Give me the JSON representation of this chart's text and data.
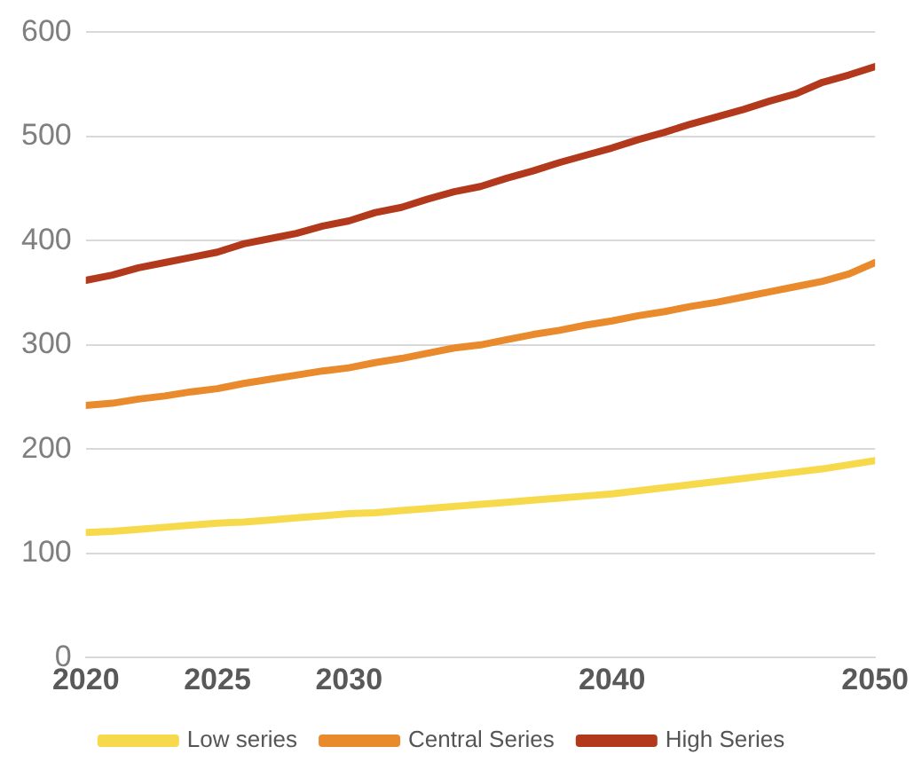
{
  "chart_data": {
    "type": "line",
    "x": [
      2020,
      2021,
      2022,
      2023,
      2024,
      2025,
      2026,
      2027,
      2028,
      2029,
      2030,
      2031,
      2032,
      2033,
      2034,
      2035,
      2036,
      2037,
      2038,
      2039,
      2040,
      2041,
      2042,
      2043,
      2044,
      2045,
      2046,
      2047,
      2048,
      2049,
      2050
    ],
    "series": [
      {
        "name": "Low series",
        "color": "#f7d94c",
        "values": [
          120,
          121,
          123,
          125,
          127,
          129,
          130,
          132,
          134,
          136,
          138,
          139,
          141,
          143,
          145,
          147,
          149,
          151,
          153,
          155,
          157,
          160,
          163,
          166,
          169,
          172,
          175,
          178,
          181,
          185,
          189
        ]
      },
      {
        "name": "Central Series",
        "color": "#e98a2c",
        "values": [
          242,
          244,
          248,
          251,
          255,
          258,
          263,
          267,
          271,
          275,
          278,
          283,
          287,
          292,
          297,
          300,
          305,
          310,
          314,
          319,
          323,
          328,
          332,
          337,
          341,
          346,
          351,
          356,
          361,
          368,
          379
        ]
      },
      {
        "name": "High Series",
        "color": "#b3391c",
        "values": [
          362,
          367,
          374,
          379,
          384,
          389,
          397,
          402,
          407,
          414,
          419,
          427,
          432,
          440,
          447,
          452,
          460,
          467,
          475,
          482,
          489,
          497,
          504,
          512,
          519,
          526,
          534,
          541,
          552,
          559,
          567
        ]
      }
    ],
    "xlim": [
      2020,
      2050
    ],
    "xticks": [
      2020,
      2025,
      2030,
      2040,
      2050
    ],
    "ylim": [
      0,
      600
    ],
    "yticks": [
      0,
      100,
      200,
      300,
      400,
      500,
      600
    ],
    "grid": "y",
    "legend": "bottom",
    "marker": "none",
    "line_style": "solid"
  }
}
